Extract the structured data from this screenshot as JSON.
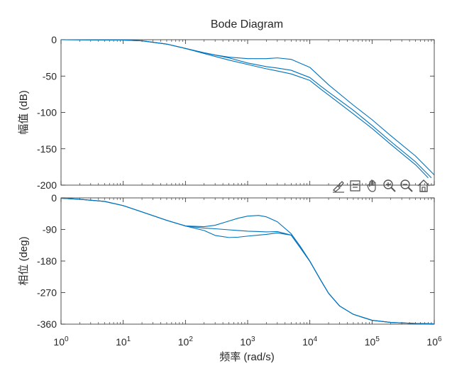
{
  "chart_data": {
    "type": "line",
    "title": "Bode Diagram",
    "xlabel": "频率  (rad/s)",
    "xscale": "log",
    "xlim": [
      1,
      1000000
    ],
    "xticks": [
      {
        "value": 1,
        "base": "10",
        "exp": "0"
      },
      {
        "value": 10,
        "base": "10",
        "exp": "1"
      },
      {
        "value": 100,
        "base": "10",
        "exp": "2"
      },
      {
        "value": 1000,
        "base": "10",
        "exp": "3"
      },
      {
        "value": 10000,
        "base": "10",
        "exp": "4"
      },
      {
        "value": 100000,
        "base": "10",
        "exp": "5"
      },
      {
        "value": 1000000,
        "base": "10",
        "exp": "6"
      }
    ],
    "line_color": "#0072BD",
    "panels": [
      {
        "id": "magnitude",
        "ylabel": "幅值 (dB)",
        "ylim": [
          -200,
          0
        ],
        "yticks": [
          0,
          -50,
          -100,
          -150,
          -200
        ],
        "series": [
          {
            "x": [
              1,
              10,
              20,
              50,
              100,
              200,
              300,
              500,
              1000,
              2000,
              3000,
              5000,
              10000,
              15000,
              20000,
              50000,
              100000,
              200000,
              500000,
              1000000
            ],
            "y": [
              0,
              -0.5,
              -1.5,
              -6,
              -12,
              -18,
              -21,
              -24,
              -26,
              -26,
              -25,
              -27,
              -38,
              -52,
              -62,
              -90,
              -110,
              -132,
              -160,
              -186
            ]
          },
          {
            "x": [
              1,
              10,
              20,
              50,
              100,
              200,
              300,
              500,
              1000,
              2000,
              3000,
              5000,
              10000,
              15000,
              20000,
              50000,
              100000,
              200000,
              500000,
              900000
            ],
            "y": [
              0,
              -0.5,
              -1.5,
              -6,
              -12,
              -18,
              -21,
              -25,
              -32,
              -37,
              -39,
              -42,
              -52,
              -64,
              -72,
              -97,
              -118,
              -140,
              -168,
              -190
            ]
          },
          {
            "x": [
              1,
              10,
              20,
              50,
              100,
              200,
              300,
              500,
              1000,
              2000,
              3000,
              5000,
              10000,
              15000,
              20000,
              50000,
              100000,
              200000,
              500000,
              800000
            ],
            "y": [
              0,
              -0.5,
              -1.5,
              -6,
              -12,
              -19,
              -23,
              -28,
              -34,
              -40,
              -43,
              -47,
              -56,
              -68,
              -76,
              -102,
              -122,
              -144,
              -172,
              -190
            ]
          }
        ]
      },
      {
        "id": "phase",
        "ylabel": "相位 (deg)",
        "ylim": [
          -360,
          0
        ],
        "yticks": [
          0,
          -90,
          -180,
          -270,
          -360
        ],
        "series": [
          {
            "x": [
              1,
              2,
              5,
              10,
              20,
              50,
              100,
              200,
              300,
              500,
              700,
              1000,
              1500,
              2000,
              3000,
              5000,
              7000,
              10000,
              15000,
              20000,
              30000,
              50000,
              100000,
              200000,
              500000,
              1000000
            ],
            "y": [
              -1,
              -4,
              -10,
              -22,
              -40,
              -64,
              -80,
              -82,
              -78,
              -66,
              -58,
              -52,
              -50,
              -54,
              -68,
              -102,
              -138,
              -180,
              -235,
              -272,
              -308,
              -332,
              -349,
              -355,
              -358,
              -359
            ]
          },
          {
            "x": [
              1,
              2,
              5,
              10,
              20,
              50,
              100,
              200,
              300,
              500,
              700,
              1000,
              1500,
              2000,
              3000,
              5000,
              7000,
              10000,
              15000,
              20000,
              30000,
              50000,
              100000,
              200000,
              500000,
              1000000
            ],
            "y": [
              -1,
              -4,
              -10,
              -22,
              -40,
              -64,
              -80,
              -86,
              -88,
              -91,
              -93,
              -95,
              -96,
              -97,
              -96,
              -106,
              -142,
              -181,
              -235,
              -272,
              -308,
              -332,
              -349,
              -355,
              -358,
              -359
            ]
          },
          {
            "x": [
              1,
              2,
              5,
              10,
              20,
              50,
              100,
              200,
              300,
              500,
              700,
              1000,
              1500,
              2000,
              3000,
              5000,
              7000,
              10000,
              15000,
              20000,
              30000,
              50000,
              100000,
              200000,
              500000,
              1000000
            ],
            "y": [
              -1,
              -4,
              -10,
              -22,
              -40,
              -64,
              -80,
              -93,
              -107,
              -113,
              -112,
              -109,
              -106,
              -104,
              -100,
              -106,
              -142,
              -181,
              -235,
              -272,
              -308,
              -332,
              -349,
              -355,
              -358,
              -359
            ]
          }
        ]
      }
    ]
  },
  "toolbar": {
    "icons": [
      "brush-icon",
      "datatip-icon",
      "pan-icon",
      "zoom-in-icon",
      "zoom-out-icon",
      "home-icon"
    ]
  }
}
